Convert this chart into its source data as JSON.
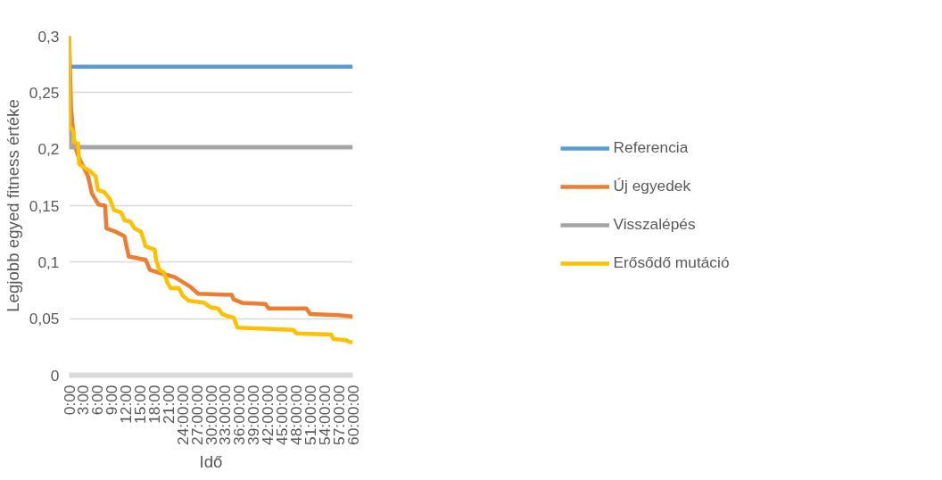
{
  "chart_data": {
    "type": "line",
    "xlabel": "Idő",
    "ylabel": "Legjobb egyed fitness értéke",
    "xlim": [
      0,
      60
    ],
    "ylim": [
      0,
      0.3
    ],
    "xticks": [
      {
        "value": 0,
        "label": "0:00"
      },
      {
        "value": 3,
        "label": "3:00"
      },
      {
        "value": 6,
        "label": "6:00"
      },
      {
        "value": 9,
        "label": "9:00"
      },
      {
        "value": 12,
        "label": "12:00"
      },
      {
        "value": 15,
        "label": "15:00"
      },
      {
        "value": 18,
        "label": "18:00"
      },
      {
        "value": 21,
        "label": "21:00"
      },
      {
        "value": 24,
        "label": "24:00:00"
      },
      {
        "value": 27,
        "label": "27:00:00"
      },
      {
        "value": 30,
        "label": "30:00:00"
      },
      {
        "value": 33,
        "label": "33:00:00"
      },
      {
        "value": 36,
        "label": "36:00:00"
      },
      {
        "value": 39,
        "label": "39:00:00"
      },
      {
        "value": 42,
        "label": "42:00:00"
      },
      {
        "value": 45,
        "label": "45:00:00"
      },
      {
        "value": 48,
        "label": "48:00:00"
      },
      {
        "value": 51,
        "label": "51:00:00"
      },
      {
        "value": 54,
        "label": "54:00:00"
      },
      {
        "value": 57,
        "label": "57:00:00"
      },
      {
        "value": 60,
        "label": "60:00:00"
      }
    ],
    "yticks": [
      {
        "value": 0,
        "label": "0"
      },
      {
        "value": 0.05,
        "label": "0,05"
      },
      {
        "value": 0.1,
        "label": "0,1"
      },
      {
        "value": 0.15,
        "label": "0,15"
      },
      {
        "value": 0.2,
        "label": "0,2"
      },
      {
        "value": 0.25,
        "label": "0,25"
      },
      {
        "value": 0.3,
        "label": "0,3"
      }
    ],
    "grid": "y",
    "legend": "right",
    "marker": "none",
    "line_style": "solid",
    "series": [
      {
        "name": "Referencia",
        "color": "#5b9bd5",
        "x": [
          0.2,
          60
        ],
        "values": [
          0.273,
          0.273
        ]
      },
      {
        "name": "Új egyedek",
        "color": "#ed7d31",
        "x": [
          0,
          0.4,
          1.1,
          2.1,
          4.0,
          4.8,
          6.2,
          7.6,
          7.9,
          9.8,
          11.7,
          12.6,
          16.2,
          17.1,
          19.6,
          22.2,
          23.4,
          25.7,
          27.3,
          34.4,
          34.8,
          36.6,
          41.5,
          42.2,
          50.2,
          51.0,
          56.9,
          60
        ],
        "values": [
          0.3,
          0.236,
          0.204,
          0.192,
          0.176,
          0.161,
          0.151,
          0.15,
          0.13,
          0.127,
          0.123,
          0.105,
          0.102,
          0.093,
          0.09,
          0.087,
          0.084,
          0.078,
          0.072,
          0.071,
          0.067,
          0.064,
          0.063,
          0.059,
          0.059,
          0.054,
          0.053,
          0.052
        ]
      },
      {
        "name": "Visszalépés",
        "color": "#a5a5a5",
        "x": [
          0,
          0.2,
          60
        ],
        "values": [
          0.3,
          0.202,
          0.202
        ]
      },
      {
        "name": "Erősődő mutáció",
        "color": "#ffc000",
        "x": [
          0,
          0.05,
          0.9,
          1.1,
          1.9,
          2.1,
          3.4,
          4.3,
          5.6,
          6.1,
          7.4,
          8.6,
          9.5,
          11.0,
          11.7,
          12.9,
          13.8,
          15.2,
          16.2,
          18.1,
          18.4,
          19.1,
          20.0,
          20.9,
          21.5,
          23.2,
          24.1,
          25.3,
          28.6,
          29.9,
          31.5,
          32.4,
          33.7,
          34.8,
          35.6,
          39.4,
          47.4,
          48.1,
          55.4,
          55.9,
          58.6,
          59.2,
          60
        ],
        "values": [
          0.3,
          0.22,
          0.216,
          0.206,
          0.205,
          0.187,
          0.183,
          0.181,
          0.176,
          0.164,
          0.162,
          0.156,
          0.146,
          0.144,
          0.137,
          0.136,
          0.13,
          0.127,
          0.114,
          0.111,
          0.102,
          0.093,
          0.091,
          0.081,
          0.077,
          0.077,
          0.07,
          0.066,
          0.064,
          0.06,
          0.059,
          0.054,
          0.052,
          0.051,
          0.042,
          0.0415,
          0.04,
          0.037,
          0.036,
          0.032,
          0.031,
          0.0295,
          0.029
        ]
      }
    ]
  }
}
